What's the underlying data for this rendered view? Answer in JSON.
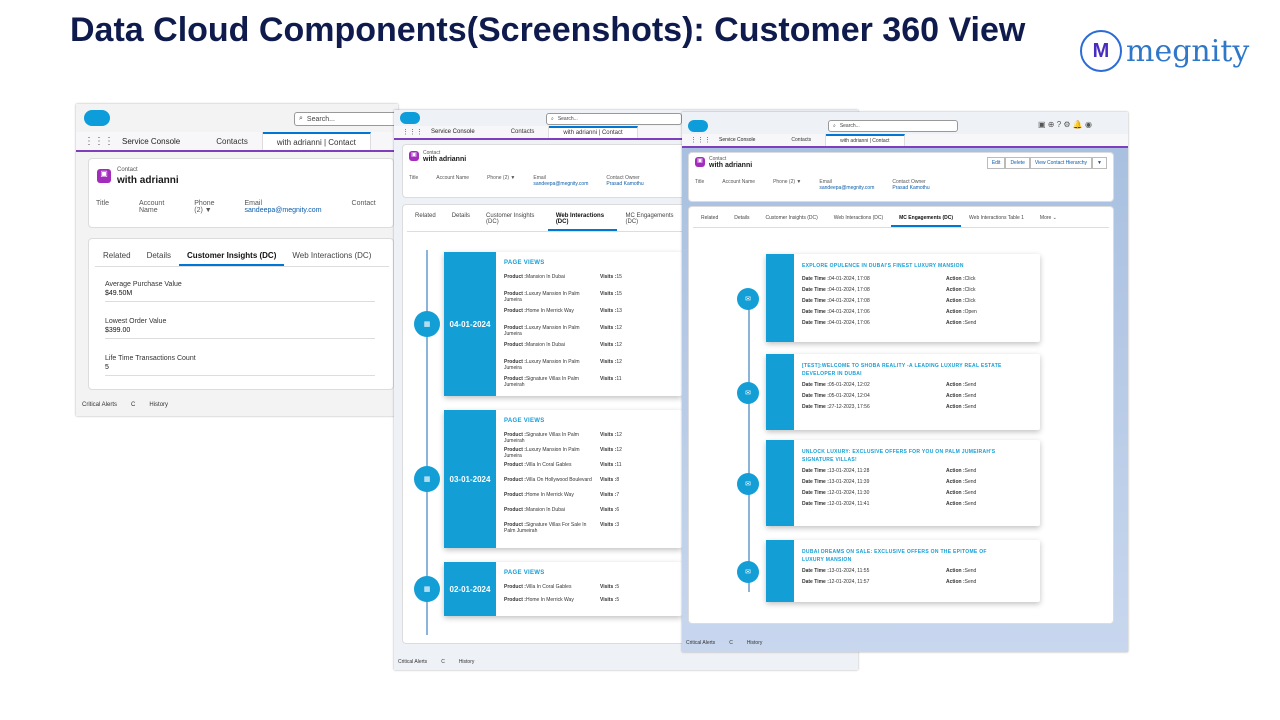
{
  "slide_title": "Data Cloud Components(Screenshots): Customer 360 View",
  "logo": {
    "mark": "M",
    "text": "megnity"
  },
  "common": {
    "search": "Search...",
    "app": "Service Console",
    "tab_contacts": "Contacts",
    "tab_record": "with adrianni | Contact",
    "contact_label": "Contact",
    "contact_name": "with adrianni",
    "title_lbl": "Title",
    "account_lbl": "Account Name",
    "phone_lbl": "Phone (2) ▼",
    "email_lbl": "Email",
    "email_val": "sandeepa@megnity.com",
    "owner_lbl": "Contact Owner",
    "owner_val": "Prasad Kamothu",
    "critical": "Critical Alerts",
    "help": "C",
    "history": "History"
  },
  "shot1": {
    "tabs": [
      "Related",
      "Details",
      "Customer Insights (DC)",
      "Web Interactions (DC)"
    ],
    "active": 2,
    "owner_short": "Contact",
    "metrics": [
      {
        "label": "Average Purchase Value",
        "value": "$49.50M"
      },
      {
        "label": "Lowest Order Value",
        "value": "$399.00"
      },
      {
        "label": "Life Time Transactions Count",
        "value": "5"
      }
    ]
  },
  "shot2": {
    "tabs": [
      "Related",
      "Details",
      "Customer Insights (DC)",
      "Web Interactions (DC)",
      "MC Engagements (DC)"
    ],
    "active": 3,
    "cards": [
      {
        "date": "04-01-2024",
        "title": "PAGE VIEWS",
        "rows": [
          [
            "Mansion In Dubai",
            "15"
          ],
          [
            "Luxury Mansion In Palm Jumeira",
            "15"
          ],
          [
            "Home In Merrick Way",
            "13"
          ],
          [
            "Luxury Mansion In Palm Jumeira",
            "12"
          ],
          [
            "Mansion In Dubai",
            "12"
          ],
          [
            "Luxury Mansion In Palm Jumeira",
            "12"
          ],
          [
            "Signature Villas In Palm Jumeirah",
            "11"
          ]
        ]
      },
      {
        "date": "03-01-2024",
        "title": "PAGE VIEWS",
        "rows": [
          [
            "Signature Villas In Palm Jumeirah",
            "12"
          ],
          [
            "Luxury Mansion In Palm Jumeira",
            "12"
          ],
          [
            "Villa In Coral Gables",
            "11"
          ],
          [
            "Villa On Hollywood Boulevard",
            "8"
          ],
          [
            "Home In Merrick Way",
            "7"
          ],
          [
            "Mansion In Dubai",
            "6"
          ],
          [
            "Signature Villas For Sale In Palm Jumeirah",
            "3"
          ]
        ]
      },
      {
        "date": "02-01-2024",
        "title": "PAGE VIEWS",
        "rows": [
          [
            "Villa In Coral Gables",
            "5"
          ],
          [
            "Home In Merrick Way",
            "5"
          ]
        ]
      }
    ],
    "product_lbl": "Product :",
    "visits_lbl": "Visits :"
  },
  "shot3": {
    "buttons": [
      "Edit",
      "Delete",
      "View Contact Hierarchy",
      "▼"
    ],
    "tabs": [
      "Related",
      "Details",
      "Customer Insights (DC)",
      "Web Interactions (DC)",
      "MC Engagements (DC)",
      "Web Interactions Table 1",
      "More ⌄"
    ],
    "active": 4,
    "date_lbl": "Date Time :",
    "action_lbl": "Action :",
    "cards": [
      {
        "title": "EXPLORE OPULENCE IN DUBAI'S FINEST LUXURY MANSION",
        "rows": [
          [
            "04-01-2024, 17:08",
            "Click"
          ],
          [
            "04-01-2024, 17:08",
            "Click"
          ],
          [
            "04-01-2024, 17:08",
            "Click"
          ],
          [
            "04-01-2024, 17:06",
            "Open"
          ],
          [
            "04-01-2024, 17:06",
            "Send"
          ]
        ]
      },
      {
        "title": "[TEST]:WELCOME TO SHOBA REALITY -A LEADING LUXURY REAL ESTATE DEVELOPER IN DUBAI",
        "rows": [
          [
            "05-01-2024, 12:02",
            "Send"
          ],
          [
            "05-01-2024, 12:04",
            "Send"
          ],
          [
            "27-12-2023, 17:56",
            "Send"
          ]
        ]
      },
      {
        "title": "UNLOCK LUXURY: EXCLUSIVE OFFERS FOR YOU ON PALM JUMEIRAH'S SIGNATURE VILLAS!",
        "rows": [
          [
            "13-01-2024, 11:28",
            "Send"
          ],
          [
            "13-01-2024, 11:39",
            "Send"
          ],
          [
            "12-01-2024, 11:30",
            "Send"
          ],
          [
            "12-01-2024, 11:41",
            "Send"
          ]
        ]
      },
      {
        "title": "DUBAI DREAMS ON SALE: EXCLUSIVE OFFERS ON THE EPITOME OF LUXURY MANSION",
        "rows": [
          [
            "13-01-2024, 11:55",
            "Send"
          ],
          [
            "12-01-2024, 11:57",
            "Send"
          ]
        ]
      }
    ]
  }
}
